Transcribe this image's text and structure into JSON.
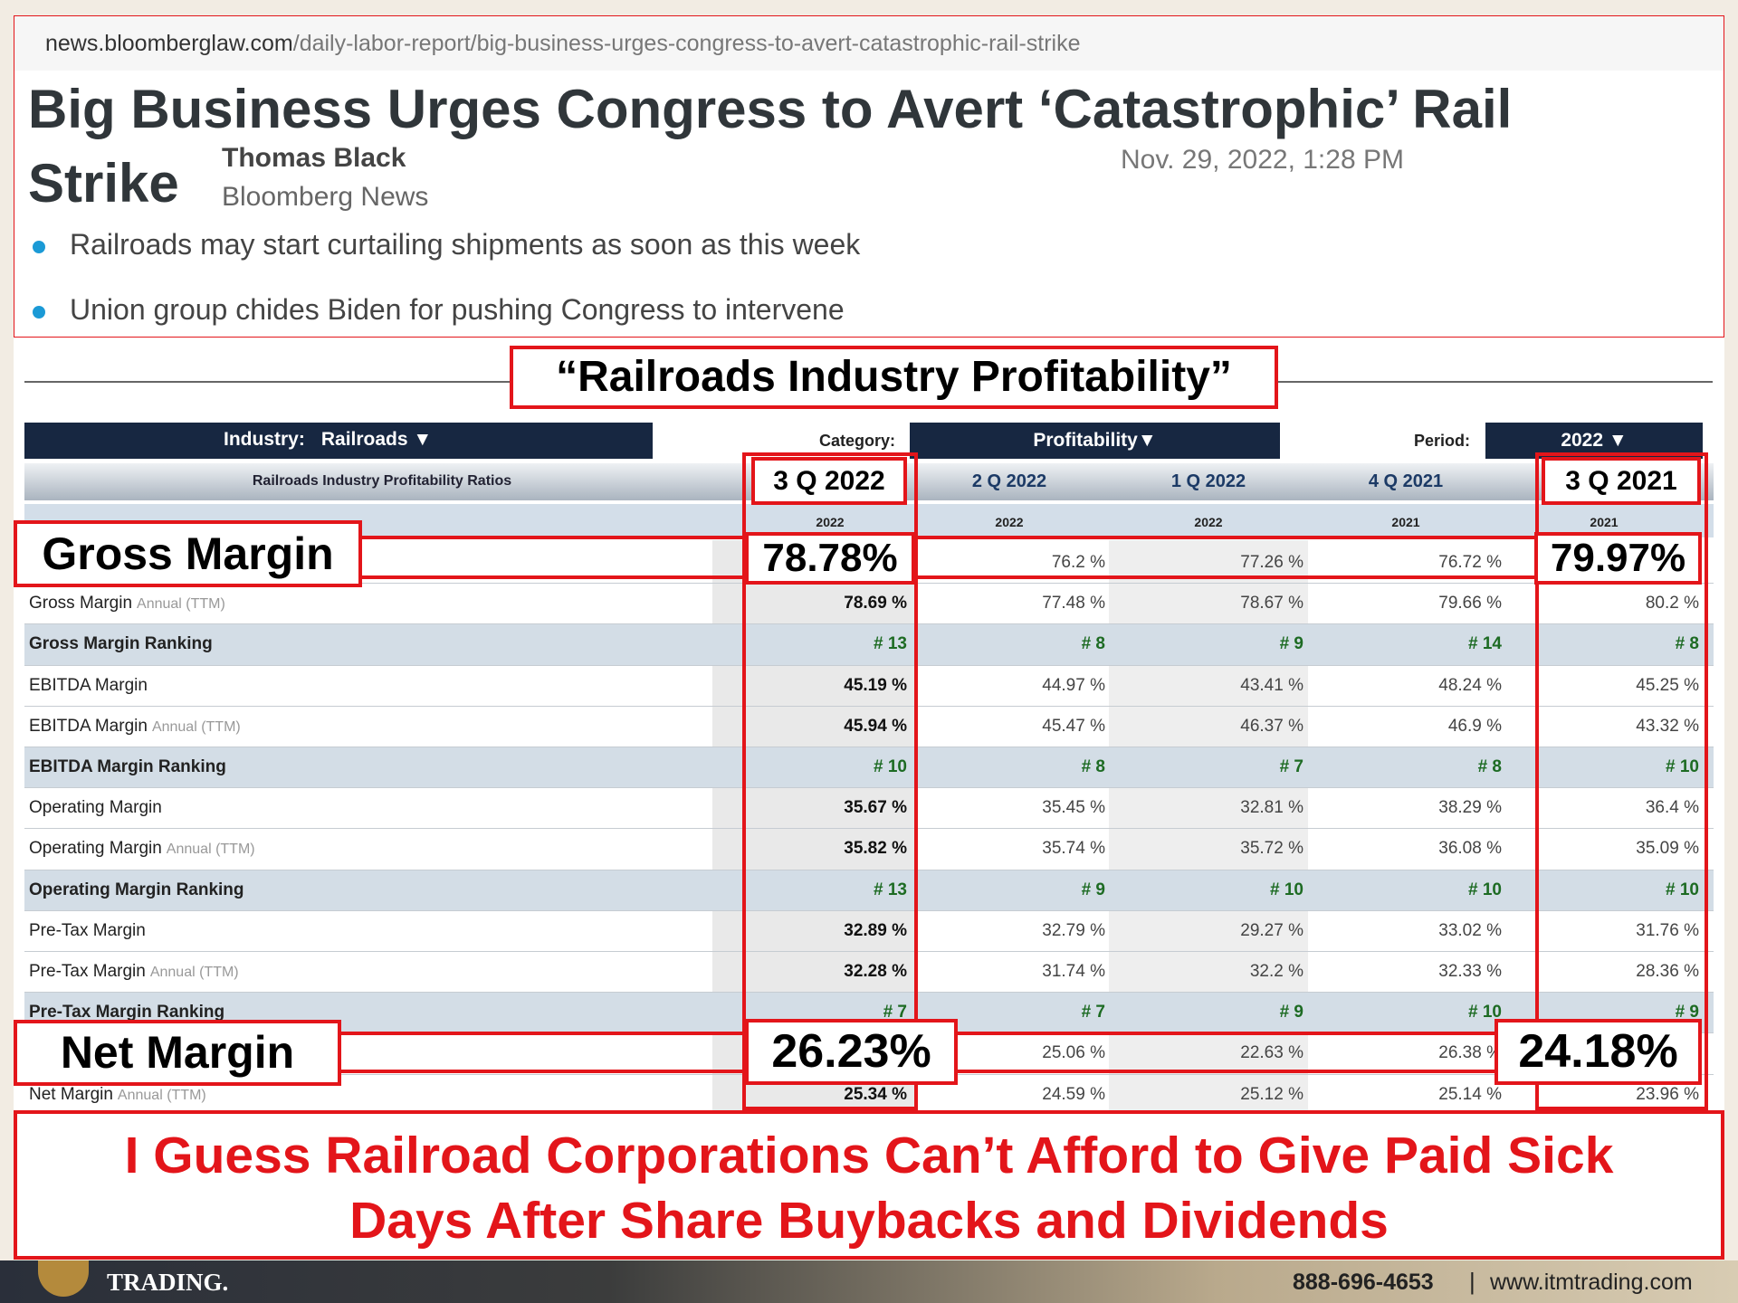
{
  "browser": {
    "url_domain": "news.bloomberglaw.com",
    "url_path": "/daily-labor-report/big-business-urges-congress-to-avert-catastrophic-rail-strike"
  },
  "article": {
    "headline_lines": [
      "Big Business Urges Congress to Avert ‘Catastrophic’ Rail",
      "Strike"
    ],
    "author": "Thomas Black",
    "outlet": "Bloomberg News",
    "date": "Nov. 29, 2022, 1:28 PM",
    "bullets": [
      "Railroads may start curtailing shipments as soon as this week",
      "Union group chides Biden for pushing Congress to intervene"
    ]
  },
  "overlay_title": "“Railroads Industry Profitability”",
  "filters": {
    "industry_label": "Industry:",
    "industry_value": "Railroads ▼",
    "category_label": "Category:",
    "category_value": "Profitability▼",
    "period_label": "Period:",
    "period_value": "2022 ▼"
  },
  "table": {
    "title": "Railroads Industry Profitability Ratios",
    "columns": [
      "3 Q 2022",
      "2 Q 2022",
      "1 Q 2022",
      "4 Q 2021",
      "3 Q 2021"
    ],
    "years": [
      "2022",
      "2022",
      "2022",
      "2021",
      "2021"
    ],
    "rows": [
      {
        "label": "Gross Margin",
        "cells": [
          "78.78%",
          "76.2 %",
          "77.26 %",
          "76.72 %",
          "79.97%"
        ]
      },
      {
        "label": "Gross Margin",
        "note": "Annual (TTM)",
        "cells": [
          "78.69 %",
          "77.48 %",
          "78.67 %",
          "79.66 %",
          "80.2 %"
        ]
      },
      {
        "label": "Gross Margin Ranking",
        "ranking": true,
        "cells": [
          "# 13",
          "# 8",
          "# 9",
          "# 14",
          "# 8"
        ]
      },
      {
        "label": "EBITDA Margin",
        "cells": [
          "45.19 %",
          "44.97 %",
          "43.41 %",
          "48.24 %",
          "45.25 %"
        ]
      },
      {
        "label": "EBITDA Margin",
        "note": "Annual (TTM)",
        "cells": [
          "45.94 %",
          "45.47 %",
          "46.37 %",
          "46.9 %",
          "43.32 %"
        ]
      },
      {
        "label": "EBITDA Margin Ranking",
        "ranking": true,
        "cells": [
          "# 10",
          "# 8",
          "# 7",
          "# 8",
          "# 10"
        ]
      },
      {
        "label": "Operating Margin",
        "cells": [
          "35.67 %",
          "35.45 %",
          "32.81 %",
          "38.29 %",
          "36.4 %"
        ]
      },
      {
        "label": "Operating Margin",
        "note": "Annual (TTM)",
        "cells": [
          "35.82 %",
          "35.74 %",
          "35.72 %",
          "36.08 %",
          "35.09 %"
        ]
      },
      {
        "label": "Operating Margin Ranking",
        "ranking": true,
        "cells": [
          "# 13",
          "# 9",
          "# 10",
          "# 10",
          "# 10"
        ]
      },
      {
        "label": "Pre-Tax Margin",
        "cells": [
          "32.89 %",
          "32.79 %",
          "29.27 %",
          "33.02 %",
          "31.76 %"
        ]
      },
      {
        "label": "Pre-Tax Margin",
        "note": "Annual (TTM)",
        "cells": [
          "32.28 %",
          "31.74 %",
          "32.2 %",
          "32.33 %",
          "28.36 %"
        ]
      },
      {
        "label": "Pre-Tax Margin Ranking",
        "ranking": true,
        "cells": [
          "# 7",
          "# 7",
          "# 9",
          "# 10",
          "# 9"
        ]
      },
      {
        "label": "Net Margin",
        "cells": [
          "26.23%",
          "25.06 %",
          "22.63 %",
          "26.38 %",
          "24.18%"
        ]
      },
      {
        "label": "Net Margin",
        "note": "Annual (TTM)",
        "cells": [
          "25.34 %",
          "24.59 %",
          "25.12 %",
          "25.14 %",
          "23.96 %"
        ]
      }
    ]
  },
  "caption_lines": [
    "I Guess Railroad Corporations Can’t Afford to Give Paid Sick",
    "Days After Share Buybacks and Dividends"
  ],
  "footer": {
    "logo": "TRADING.",
    "phone": "888-696-4653",
    "separator": "|",
    "website": "www.itmtrading.com"
  }
}
